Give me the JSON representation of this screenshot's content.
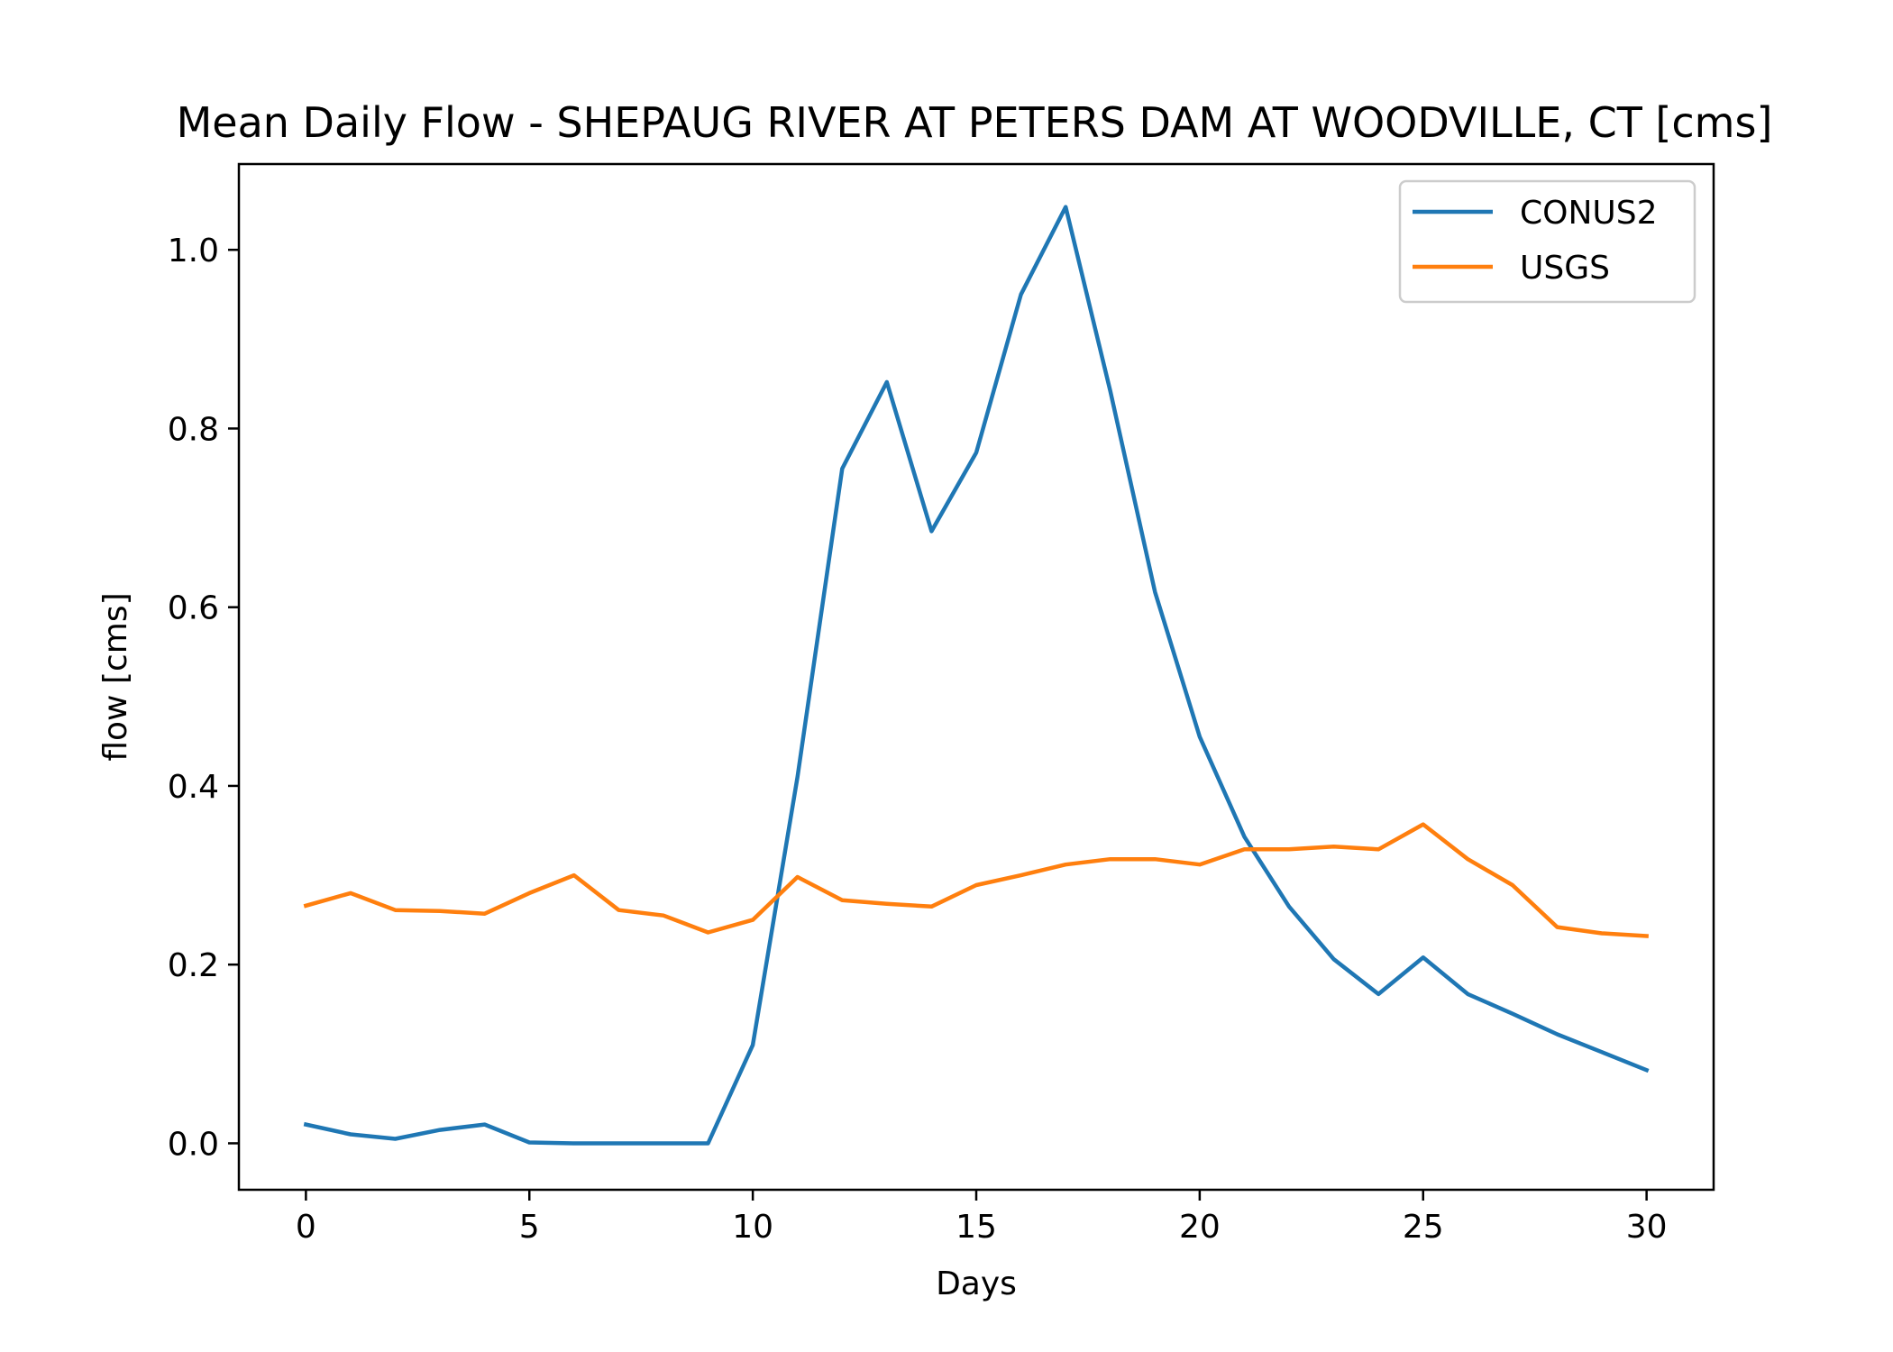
{
  "chart_data": {
    "type": "line",
    "title": "Mean Daily Flow - SHEPAUG RIVER AT PETERS DAM AT WOODVILLE, CT [cms]",
    "xlabel": "Days",
    "ylabel": "flow [cms]",
    "xlim": [
      -1.5,
      31.5
    ],
    "ylim": [
      -0.052,
      1.096
    ],
    "xticks": [
      0,
      5,
      10,
      15,
      20,
      25,
      30
    ],
    "xtick_labels": [
      "0",
      "5",
      "10",
      "15",
      "20",
      "25",
      "30"
    ],
    "yticks": [
      0.0,
      0.2,
      0.4,
      0.6,
      0.8,
      1.0
    ],
    "ytick_labels": [
      "0.0",
      "0.2",
      "0.4",
      "0.6",
      "0.8",
      "1.0"
    ],
    "grid": false,
    "legend_position": "top-right",
    "x": [
      0,
      1,
      2,
      3,
      4,
      5,
      6,
      7,
      8,
      9,
      10,
      11,
      12,
      13,
      14,
      15,
      16,
      17,
      18,
      19,
      20,
      21,
      22,
      23,
      24,
      25,
      26,
      27,
      28,
      29,
      30
    ],
    "series": [
      {
        "name": "CONUS2",
        "color": "#1f77b4",
        "values": [
          0.021,
          0.01,
          0.005,
          0.015,
          0.021,
          0.001,
          0.0,
          0.0,
          0.0,
          0.0,
          0.11,
          0.41,
          0.755,
          0.852,
          0.685,
          0.773,
          0.95,
          1.048,
          0.842,
          0.617,
          0.455,
          0.343,
          0.265,
          0.206,
          0.167,
          0.208,
          0.167,
          0.145,
          0.122,
          0.102,
          0.082
        ]
      },
      {
        "name": "USGS",
        "color": "#ff7f0e",
        "values": [
          0.266,
          0.28,
          0.261,
          0.26,
          0.257,
          0.28,
          0.3,
          0.261,
          0.255,
          0.236,
          0.25,
          0.298,
          0.272,
          0.268,
          0.265,
          0.289,
          0.3,
          0.312,
          0.318,
          0.318,
          0.312,
          0.329,
          0.329,
          0.332,
          0.329,
          0.357,
          0.318,
          0.289,
          0.242,
          0.235,
          0.232
        ]
      }
    ]
  }
}
